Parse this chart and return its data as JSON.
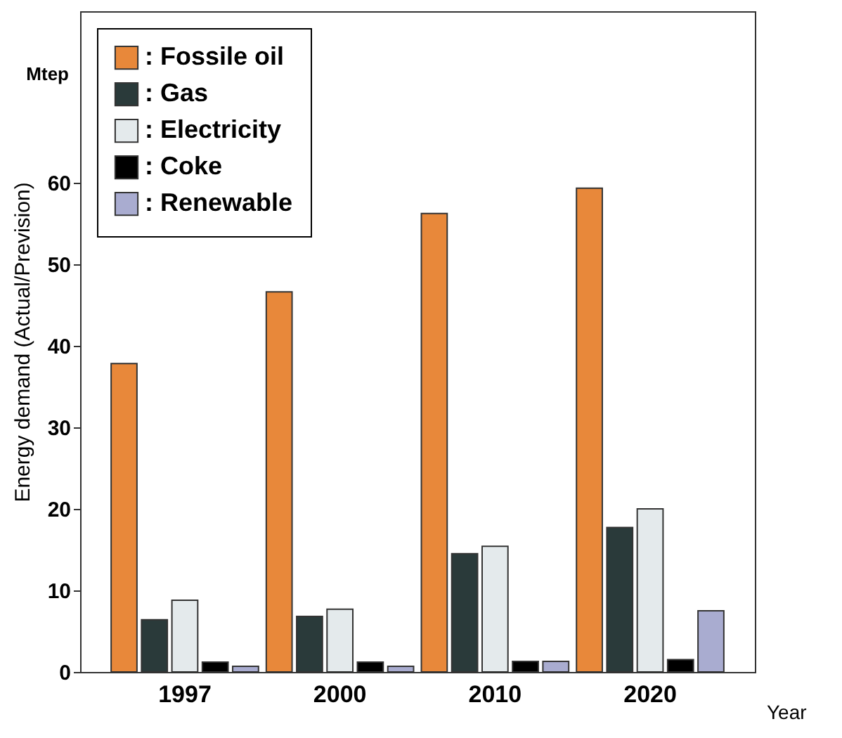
{
  "chart_data": {
    "type": "bar",
    "xlabel": "Year",
    "ylabel": "Energy demand (Actual/Prevision)",
    "annotations": [
      "Mtep"
    ],
    "categories": [
      "1997",
      "2000",
      "2010",
      "2020"
    ],
    "series": [
      {
        "name": ": Fossile oil",
        "color": "#e8883a",
        "values": [
          37.8,
          46.6,
          56.2,
          59.3
        ]
      },
      {
        "name": ": Gas",
        "color": "#2a3a3a",
        "values": [
          6.4,
          6.8,
          14.5,
          17.7
        ]
      },
      {
        "name": ": Electricity",
        "color": "#e4eaec",
        "values": [
          8.8,
          7.7,
          15.4,
          20.0
        ]
      },
      {
        "name": ": Coke",
        "color": "#000000",
        "values": [
          1.2,
          1.2,
          1.3,
          1.5
        ]
      },
      {
        "name": ": Renewable",
        "color": "#a9acd0",
        "values": [
          0.7,
          0.7,
          1.3,
          7.5
        ]
      }
    ],
    "ylim": [
      0,
      81
    ],
    "yticks": [
      0,
      10,
      20,
      30,
      40,
      50,
      60
    ],
    "grid": false,
    "legend": "top left"
  }
}
